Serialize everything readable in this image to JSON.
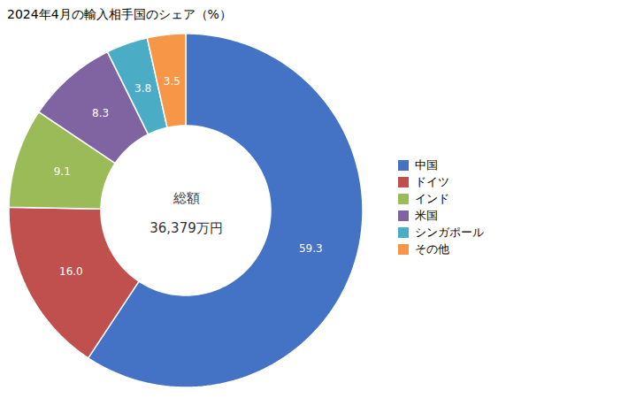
{
  "chart_data": {
    "type": "donut",
    "title": "2024年4月の輸入相手国のシェア（%）",
    "categories": [
      "中国",
      "ドイツ",
      "インド",
      "米国",
      "シンガポール",
      "その他"
    ],
    "values": [
      59.3,
      16.0,
      9.1,
      8.3,
      3.8,
      3.5
    ],
    "value_labels": [
      "59.3",
      "16.0",
      "9.1",
      "8.3",
      "3.8",
      "3.5"
    ],
    "colors": [
      "#4472C4",
      "#C0504D",
      "#9BBB59",
      "#8064A2",
      "#4BACC6",
      "#F79646"
    ],
    "data_labels": true,
    "annotations": [
      "総額",
      "36,379万円"
    ],
    "legend": "right"
  }
}
